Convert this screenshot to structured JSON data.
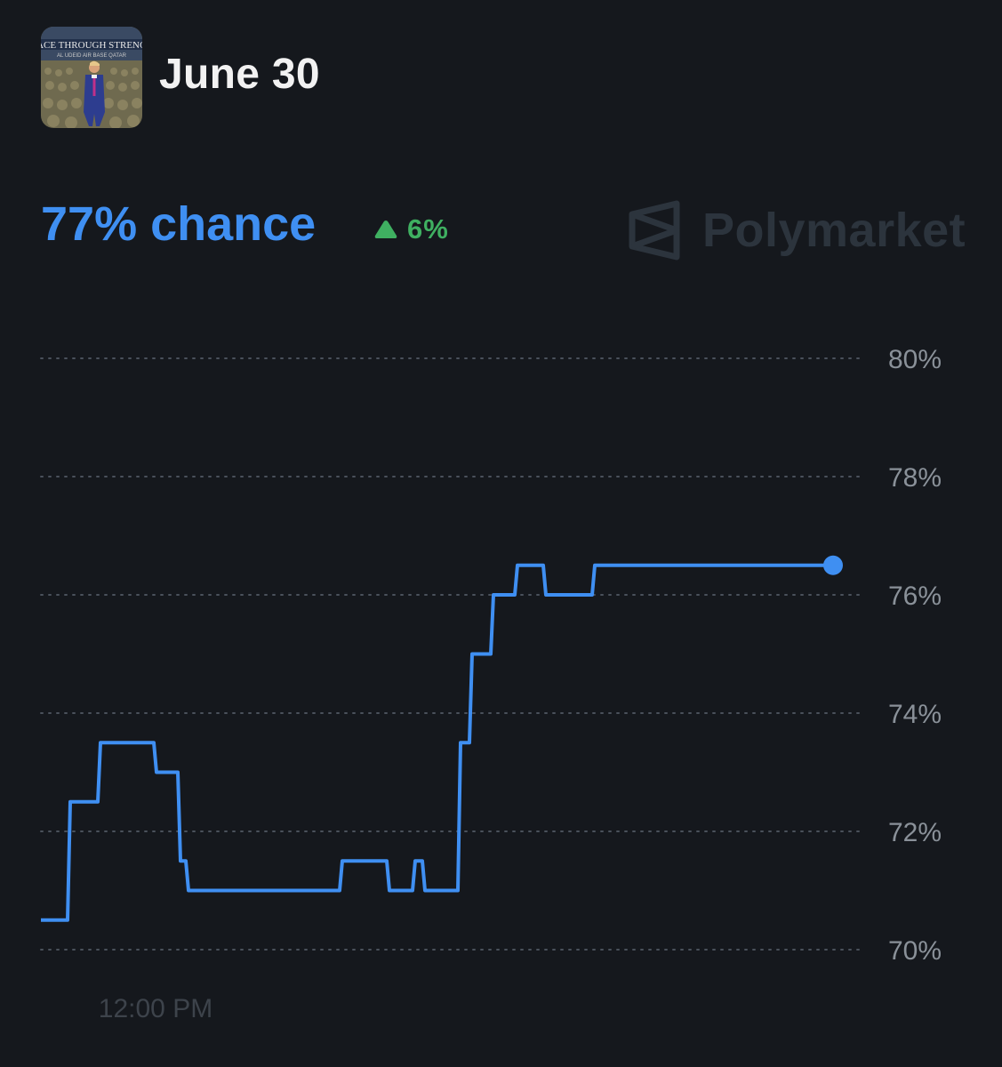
{
  "header": {
    "title": "June 30",
    "thumbnail_icon": "market-thumbnail-image"
  },
  "odds": {
    "chance_text": "77% chance",
    "change_text": "6%",
    "change_direction": "up",
    "change_color": "#3fb061",
    "accent": "#3f8ff2"
  },
  "brand": {
    "name": "Polymarket",
    "logo_icon": "polymarket-logo-icon"
  },
  "chart_data": {
    "type": "line",
    "title": "",
    "xlabel": "",
    "ylabel": "",
    "grid": true,
    "line_style": "step",
    "color": "#3f8ff2",
    "ylim": [
      70,
      80
    ],
    "yticks": [
      80,
      78,
      76,
      74,
      72,
      70
    ],
    "ytick_labels": [
      "80%",
      "78%",
      "76%",
      "74%",
      "72%",
      "70%"
    ],
    "xtick_labels": [
      "12:00 PM"
    ],
    "series": [
      {
        "values": [
          70.5,
          70.5,
          72.5,
          72.5,
          73.5,
          73.5,
          73.0,
          73.0,
          71.5,
          71.0,
          71.0,
          71.0,
          71.0,
          71.5,
          71.5,
          71.0,
          71.0,
          71.5,
          71.0,
          71.0,
          73.5,
          75.0,
          75.0,
          76.0,
          76.0,
          76.5,
          76.5,
          76.0,
          76.0,
          76.5,
          76.5,
          76.5,
          76.5
        ]
      }
    ]
  }
}
